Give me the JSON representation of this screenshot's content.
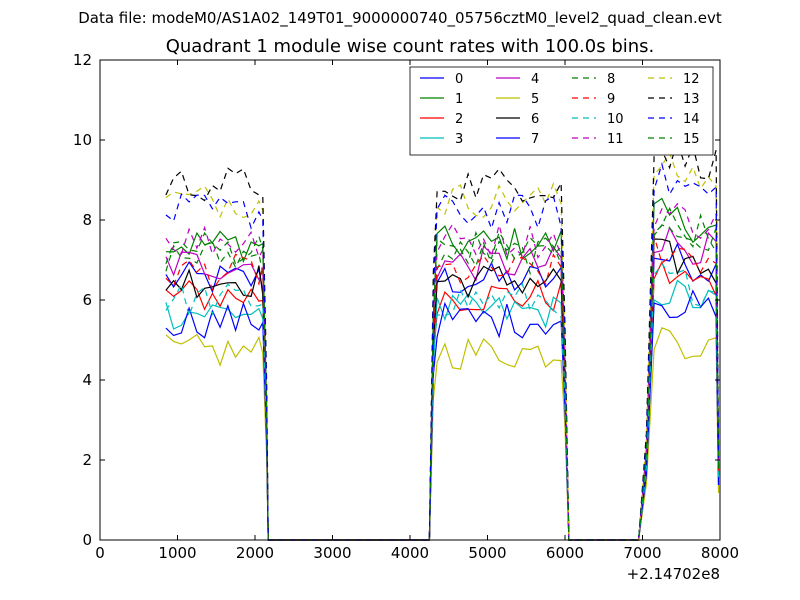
{
  "page": {
    "suptitle": "Data file: modeM0/AS1A02_149T01_9000000740_05756cztM0_level2_quad_clean.evt"
  },
  "chart_data": {
    "type": "line",
    "title": "Quadrant 1 module wise count rates with 100.0s bins.",
    "xlabel": "",
    "ylabel": "",
    "x_offset_label": "+2.14702e8",
    "xlim": [
      0,
      8000
    ],
    "ylim": [
      0,
      12
    ],
    "xticks": [
      "0",
      "1000",
      "2000",
      "3000",
      "4000",
      "5000",
      "6000",
      "7000",
      "8000"
    ],
    "yticks": [
      "0",
      "2",
      "4",
      "6",
      "8",
      "10",
      "12"
    ],
    "grid": false,
    "legend_position": "top-right",
    "x": [
      850,
      950,
      1050,
      1150,
      1250,
      1350,
      1450,
      1550,
      1650,
      1750,
      1850,
      1950,
      2050,
      2100,
      2150,
      2170,
      2250,
      2400,
      2600,
      2800,
      3000,
      3200,
      3400,
      3600,
      3800,
      4000,
      4200,
      4250,
      4300,
      4350,
      4450,
      4550,
      4650,
      4750,
      4850,
      4950,
      5050,
      5150,
      5250,
      5350,
      5450,
      5550,
      5650,
      5750,
      5850,
      5950,
      6000,
      6050,
      6200,
      6400,
      6600,
      6800,
      6950,
      7050,
      7150,
      7250,
      7350,
      7450,
      7550,
      7650,
      7750,
      7850,
      7950,
      7980
    ],
    "series": [
      {
        "name": "0",
        "color": "#0000ff",
        "dashed": false,
        "level": 6.5
      },
      {
        "name": "1",
        "color": "#008000",
        "dashed": false,
        "level": 7.4
      },
      {
        "name": "2",
        "color": "#ff0000",
        "dashed": false,
        "level": 6.1
      },
      {
        "name": "3",
        "color": "#00bfbf",
        "dashed": false,
        "level": 5.7
      },
      {
        "name": "4",
        "color": "#bf00bf",
        "dashed": false,
        "level": 6.9
      },
      {
        "name": "5",
        "color": "#bfbf00",
        "dashed": false,
        "level": 4.7
      },
      {
        "name": "6",
        "color": "#000000",
        "dashed": false,
        "level": 6.5
      },
      {
        "name": "7",
        "color": "#0000ff",
        "dashed": false,
        "level": 5.5
      },
      {
        "name": "8",
        "color": "#008000",
        "dashed": true,
        "level": 7.1
      },
      {
        "name": "9",
        "color": "#ff0000",
        "dashed": true,
        "level": 6.7
      },
      {
        "name": "10",
        "color": "#00bfbf",
        "dashed": true,
        "level": 6.0
      },
      {
        "name": "11",
        "color": "#bf00bf",
        "dashed": true,
        "level": 7.5
      },
      {
        "name": "12",
        "color": "#bfbf00",
        "dashed": true,
        "level": 8.5
      },
      {
        "name": "13",
        "color": "#000000",
        "dashed": true,
        "level": 8.9
      },
      {
        "name": "14",
        "color": "#0000ff",
        "dashed": true,
        "level": 8.2
      },
      {
        "name": "15",
        "color": "#008000",
        "dashed": true,
        "level": 7.3
      }
    ],
    "segment_scale": [
      1.0,
      1.0,
      1.1
    ],
    "data_x_from": 850
  }
}
